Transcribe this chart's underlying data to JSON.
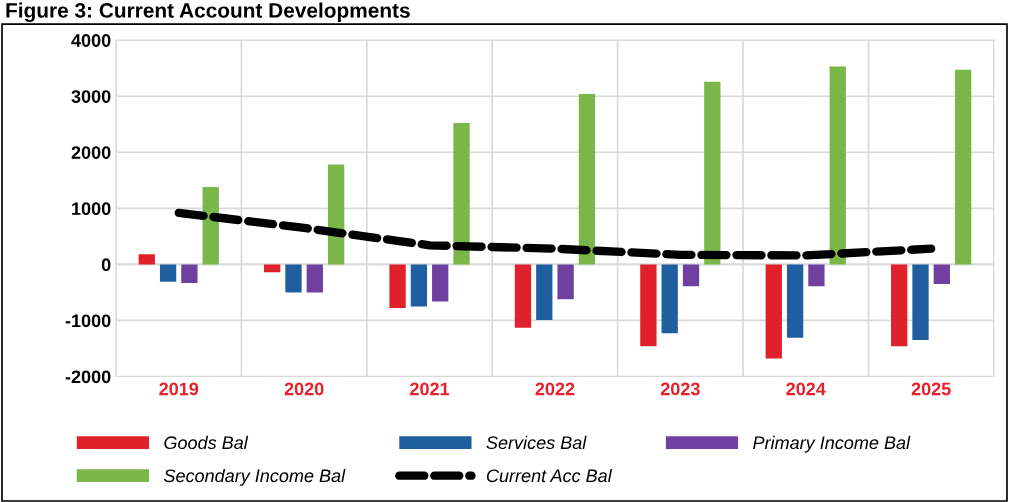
{
  "chart_data": {
    "type": "bar",
    "title": "Figure 3: Current Account Developments",
    "categories": [
      "2019",
      "2020",
      "2021",
      "2022",
      "2023",
      "2024",
      "2025"
    ],
    "series": [
      {
        "name": "Goods Bal",
        "color": "#e0202a",
        "values": [
          180,
          -140,
          -780,
          -1130,
          -1460,
          -1680,
          -1460
        ]
      },
      {
        "name": "Services Bal",
        "color": "#1f5fa0",
        "values": [
          -310,
          -500,
          -750,
          -990,
          -1230,
          -1310,
          -1350
        ]
      },
      {
        "name": "Primary Income Bal",
        "color": "#7040a0",
        "values": [
          -330,
          -500,
          -660,
          -620,
          -390,
          -390,
          -350
        ]
      },
      {
        "name": "Secondary Income Bal",
        "color": "#7ab648",
        "values": [
          1380,
          1780,
          2520,
          3040,
          3260,
          3530,
          3470
        ]
      },
      {
        "name": "Current Acc Bal",
        "color": "#000000",
        "type": "line",
        "line_style": "dashed",
        "values": [
          920,
          650,
          340,
          280,
          170,
          160,
          280
        ]
      }
    ],
    "ylim": [
      -2000,
      4000
    ],
    "yticks": [
      -2000,
      -1000,
      0,
      1000,
      2000,
      3000,
      4000
    ],
    "grid": true,
    "legend": "bottom"
  }
}
